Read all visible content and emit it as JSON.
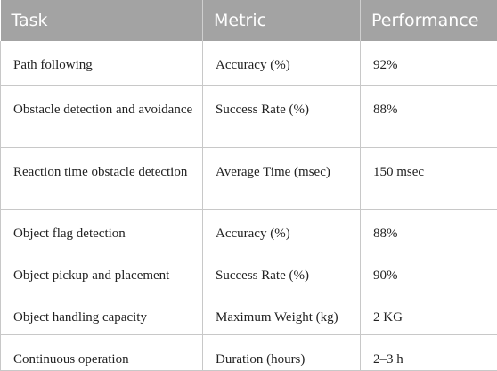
{
  "table": {
    "headers": [
      "Task",
      "Metric",
      "Performance"
    ],
    "rows": [
      [
        "Path following",
        "Accuracy (%)",
        "92%"
      ],
      [
        "Obstacle detection and avoidance",
        "Success Rate (%)",
        "88%"
      ],
      [
        "Reaction time obstacle detection",
        "Average Time (msec)",
        "150 msec"
      ],
      [
        "Object flag detection",
        "Accuracy (%)",
        "88%"
      ],
      [
        "Object pickup and placement",
        "Success Rate (%)",
        "90%"
      ],
      [
        "Object handling capacity",
        "Maximum Weight (kg)",
        "2 KG"
      ],
      [
        "Continuous operation",
        "Duration (hours)",
        "2–3 h"
      ]
    ]
  }
}
